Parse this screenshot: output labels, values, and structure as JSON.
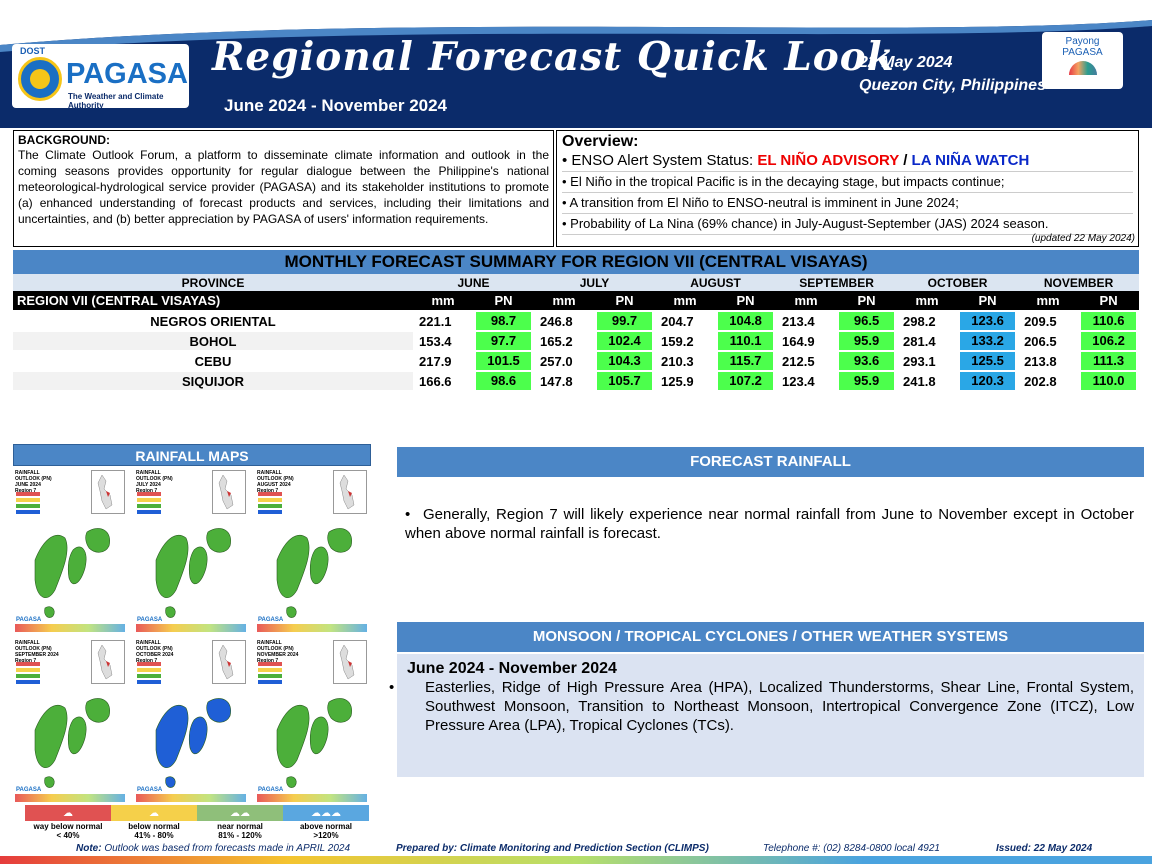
{
  "header": {
    "logo_dost": "DOST",
    "logo_name": "PAGASA",
    "logo_sub": "The Weather and Climate Authority",
    "title": "Regional Forecast Quick Look",
    "period": "June 2024 - November 2024",
    "date": "22 May 2024",
    "place": "Quezon City, Philippines",
    "payong_line1": "Payong",
    "payong_line2": "PAGASA"
  },
  "background": {
    "title": "BACKGROUND:",
    "text": "The Climate Outlook Forum, a platform to disseminate climate information and outlook in the coming seasons provides opportunity for regular dialogue between the Philippine's national meteorological-hydrological service provider (PAGASA) and its stakeholder institutions to promote (a) enhanced understanding of forecast products and services, including their limitations and uncertainties, and (b) better appreciation by PAGASA of users' information requirements."
  },
  "overview": {
    "title": "Overview:",
    "enso_label": "• ENSO Alert System Status: ",
    "enso_advisory": "EL NIÑO ADVISORY",
    "enso_sep": " / ",
    "enso_watch": "LA NIÑA WATCH",
    "line2": "• El Niño in the tropical Pacific is in the decaying stage, but impacts continue;",
    "line3": "• A transition from El Niño to ENSO-neutral is imminent in June 2024;",
    "line4": "• Probability of La Nina (69% chance) in July-August-September (JAS) 2024 season.",
    "updated": "(updated 22 May 2024)"
  },
  "table": {
    "title": "MONTHLY FORECAST SUMMARY FOR REGION VII (CENTRAL VISAYAS)",
    "province_header": "PROVINCE",
    "months": [
      "JUNE",
      "JULY",
      "AUGUST",
      "SEPTEMBER",
      "OCTOBER",
      "NOVEMBER"
    ],
    "region_label": "REGION VII (CENTRAL VISAYAS)",
    "mm_label": "mm",
    "pn_label": "PN",
    "rows": [
      {
        "province": "NEGROS ORIENTAL",
        "values": [
          [
            "221.1",
            "98.7"
          ],
          [
            "246.8",
            "99.7"
          ],
          [
            "204.7",
            "104.8"
          ],
          [
            "213.4",
            "96.5"
          ],
          [
            "298.2",
            "123.6"
          ],
          [
            "209.5",
            "110.6"
          ]
        ]
      },
      {
        "province": "BOHOL",
        "values": [
          [
            "153.4",
            "97.7"
          ],
          [
            "165.2",
            "102.4"
          ],
          [
            "159.2",
            "110.1"
          ],
          [
            "164.9",
            "95.9"
          ],
          [
            "281.4",
            "133.2"
          ],
          [
            "206.5",
            "106.2"
          ]
        ]
      },
      {
        "province": "CEBU",
        "values": [
          [
            "217.9",
            "101.5"
          ],
          [
            "257.0",
            "104.3"
          ],
          [
            "210.3",
            "115.7"
          ],
          [
            "212.5",
            "93.6"
          ],
          [
            "293.1",
            "125.5"
          ],
          [
            "213.8",
            "111.3"
          ]
        ]
      },
      {
        "province": "SIQUIJOR",
        "values": [
          [
            "166.6",
            "98.6"
          ],
          [
            "147.8",
            "105.7"
          ],
          [
            "125.9",
            "107.2"
          ],
          [
            "123.4",
            "95.9"
          ],
          [
            "241.8",
            "120.3"
          ],
          [
            "202.8",
            "110.0"
          ]
        ]
      }
    ],
    "pn_colors": {
      "near_normal": "#4cff4c",
      "above_normal": "#2aa7e6"
    }
  },
  "maps": {
    "title": "RAINFALL MAPS",
    "panels": [
      {
        "caption1": "RAINFALL OUTLOOK (PN)",
        "caption2": "JUNE 2024",
        "caption3": "Region 7",
        "fill": "#4caf3a"
      },
      {
        "caption1": "RAINFALL OUTLOOK (PN)",
        "caption2": "JULY 2024",
        "caption3": "Region 7",
        "fill": "#4caf3a"
      },
      {
        "caption1": "RAINFALL OUTLOOK (PN)",
        "caption2": "AUGUST 2024",
        "caption3": "Region 7",
        "fill": "#4caf3a"
      },
      {
        "caption1": "RAINFALL OUTLOOK (PN)",
        "caption2": "SEPTEMBER 2024",
        "caption3": "Region 7",
        "fill": "#4caf3a"
      },
      {
        "caption1": "RAINFALL OUTLOOK (PN)",
        "caption2": "OCTOBER 2024",
        "caption3": "Region 7",
        "fill": "#1f5fd6"
      },
      {
        "caption1": "RAINFALL OUTLOOK (PN)",
        "caption2": "NOVEMBER 2024",
        "caption3": "Region 7",
        "fill": "#4caf3a"
      }
    ],
    "brand": "PAGASA",
    "legend": [
      {
        "label1": "way below normal",
        "label2": "< 40%",
        "color": "#e05252"
      },
      {
        "label1": "below normal",
        "label2": "41% - 80%",
        "color": "#f5d04a"
      },
      {
        "label1": "near normal",
        "label2": "81% - 120%",
        "color": "#8fbf7a"
      },
      {
        "label1": "above normal",
        "label2": ">120%",
        "color": "#5aa7e0"
      }
    ]
  },
  "forecast_rainfall": {
    "title": "FORECAST RAINFALL",
    "bullet": "•",
    "text": "Generally, Region 7 will likely experience near normal rainfall from June to November except in October when above normal rainfall is forecast."
  },
  "monsoon": {
    "title": "MONSOON  /  TROPICAL CYCLONES / OTHER WEATHER SYSTEMS",
    "subtitle": "June 2024 - November 2024",
    "bullet": "•",
    "text": "Easterlies, Ridge of High Pressure Area (HPA), Localized Thunderstorms, Shear Line, Frontal System, Southwest Monsoon, Transition to Northeast Monsoon, Intertropical Convergence Zone (ITCZ), Low Pressure Area (LPA), Tropical Cyclones (TCs)."
  },
  "footer": {
    "note_label": "Note:",
    "note": " Outlook was based from forecasts made in APRIL 2024",
    "prepared": "Prepared by: Climate Monitoring and Prediction Section (CLIMPS)",
    "telephone": "Telephone #: (02) 8284-0800 local 4921",
    "issued": "Issued:  22 May 2024"
  }
}
